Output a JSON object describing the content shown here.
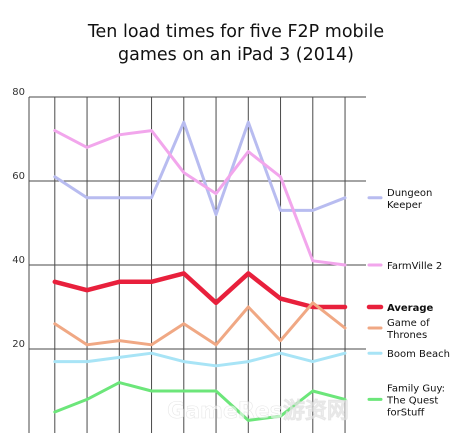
{
  "title_lines": [
    "Ten load times for five F2P mobile",
    "games on an iPad 3 (2014)"
  ],
  "watermark": "GameRes游资网",
  "chart_data": {
    "type": "line",
    "title": "Ten load times for five F2P mobile games on an iPad 3 (2014)",
    "xlabel": "",
    "ylabel": "",
    "x": [
      1,
      2,
      3,
      4,
      5,
      6,
      7,
      8,
      9,
      10
    ],
    "xlim": [
      0.2,
      10.65
    ],
    "ylim": [
      0,
      80
    ],
    "yticks": [
      20,
      40,
      60,
      80
    ],
    "grid": true,
    "legend": "right",
    "series": [
      {
        "name": "Dungeon Keeper",
        "legend_lines": [
          "Dungeon",
          "Keeper"
        ],
        "color": "#b8bcf0",
        "values": [
          61,
          56,
          56,
          56,
          74,
          52,
          74,
          53,
          53,
          56
        ]
      },
      {
        "name": "FarmVille 2",
        "legend_lines": [
          "FarmVille 2"
        ],
        "color": "#f2a6ec",
        "values": [
          72,
          68,
          71,
          72,
          62,
          57,
          67,
          61,
          41,
          40
        ]
      },
      {
        "name": "Average",
        "legend_lines": [
          "Average"
        ],
        "color": "#e8203c",
        "bold": true,
        "values": [
          36,
          34,
          36,
          36,
          38,
          31,
          38,
          32,
          30,
          30
        ]
      },
      {
        "name": "Game of Thrones",
        "legend_lines": [
          "Game of",
          "Thrones"
        ],
        "color": "#f0a884",
        "values": [
          26,
          21,
          22,
          21,
          26,
          21,
          30,
          22,
          31,
          25
        ]
      },
      {
        "name": "Boom Beach",
        "legend_lines": [
          "Boom Beach"
        ],
        "color": "#a8e4f6",
        "values": [
          17,
          17,
          18,
          19,
          17,
          16,
          17,
          19,
          17,
          19
        ]
      },
      {
        "name": "Family Guy: The Quest forStuff",
        "legend_lines": [
          "Family Guy:",
          "The Quest",
          "forStuff"
        ],
        "color": "#6ce67a",
        "values": [
          5,
          8,
          12,
          10,
          10,
          10,
          3,
          4,
          10,
          8
        ]
      }
    ]
  }
}
